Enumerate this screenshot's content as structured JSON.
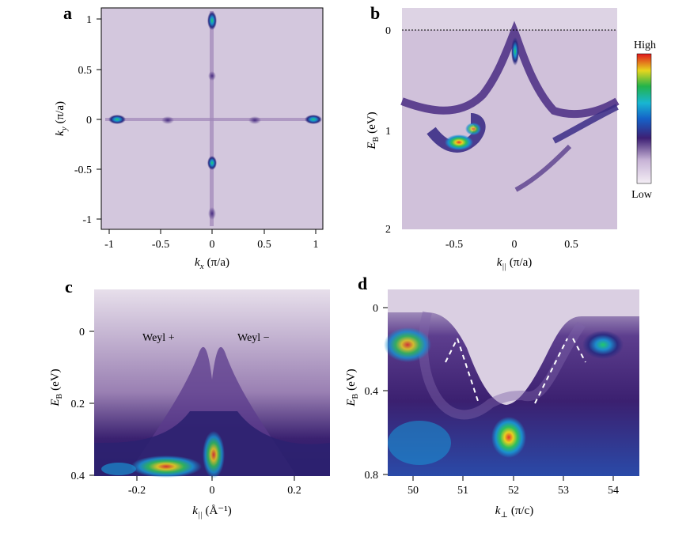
{
  "figure": {
    "panels": {
      "a": {
        "label": "a",
        "xlabel_var": "k",
        "xlabel_sub": "x",
        "xlabel_unit": "(π/a)",
        "ylabel_var": "k",
        "ylabel_sub": "y",
        "ylabel_unit": "(π/a)",
        "xticks": [
          "-1",
          "-0.5",
          "0",
          "0.5",
          "1"
        ],
        "yticks": [
          "1",
          "0.5",
          "0",
          "-0.5",
          "-1"
        ]
      },
      "b": {
        "label": "b",
        "xlabel_var": "k",
        "xlabel_sub": "||",
        "xlabel_unit": "(π/a)",
        "ylabel_var": "E",
        "ylabel_sub": "B",
        "ylabel_unit": "(eV)",
        "xticks": [
          "-0.5",
          "0",
          "0.5"
        ],
        "yticks": [
          "0",
          "1",
          "2"
        ]
      },
      "c": {
        "label": "c",
        "xlabel_var": "k",
        "xlabel_sub": "||",
        "xlabel_unit": "(Å⁻¹)",
        "ylabel_var": "E",
        "ylabel_sub": "B",
        "ylabel_unit": "(eV)",
        "xticks": [
          "-0.2",
          "0",
          "0.2"
        ],
        "yticks": [
          "0",
          "0.2",
          "0.4"
        ],
        "annotation_left": "Weyl +",
        "annotation_right": "Weyl −"
      },
      "d": {
        "label": "d",
        "xlabel_var": "k",
        "xlabel_sub": "⊥",
        "xlabel_unit": "(π/c)",
        "ylabel_var": "E",
        "ylabel_sub": "B",
        "ylabel_unit": "(eV)",
        "xticks": [
          "50",
          "51",
          "52",
          "53",
          "54"
        ],
        "yticks": [
          "0",
          "0.4",
          "0.8"
        ]
      }
    },
    "colorbar": {
      "high": "High",
      "low": "Low"
    }
  },
  "colors": {
    "low": "#d9cde0",
    "mid": "#4a2a7a",
    "accent": "#1a8fd0",
    "hot": "#e8d020"
  }
}
